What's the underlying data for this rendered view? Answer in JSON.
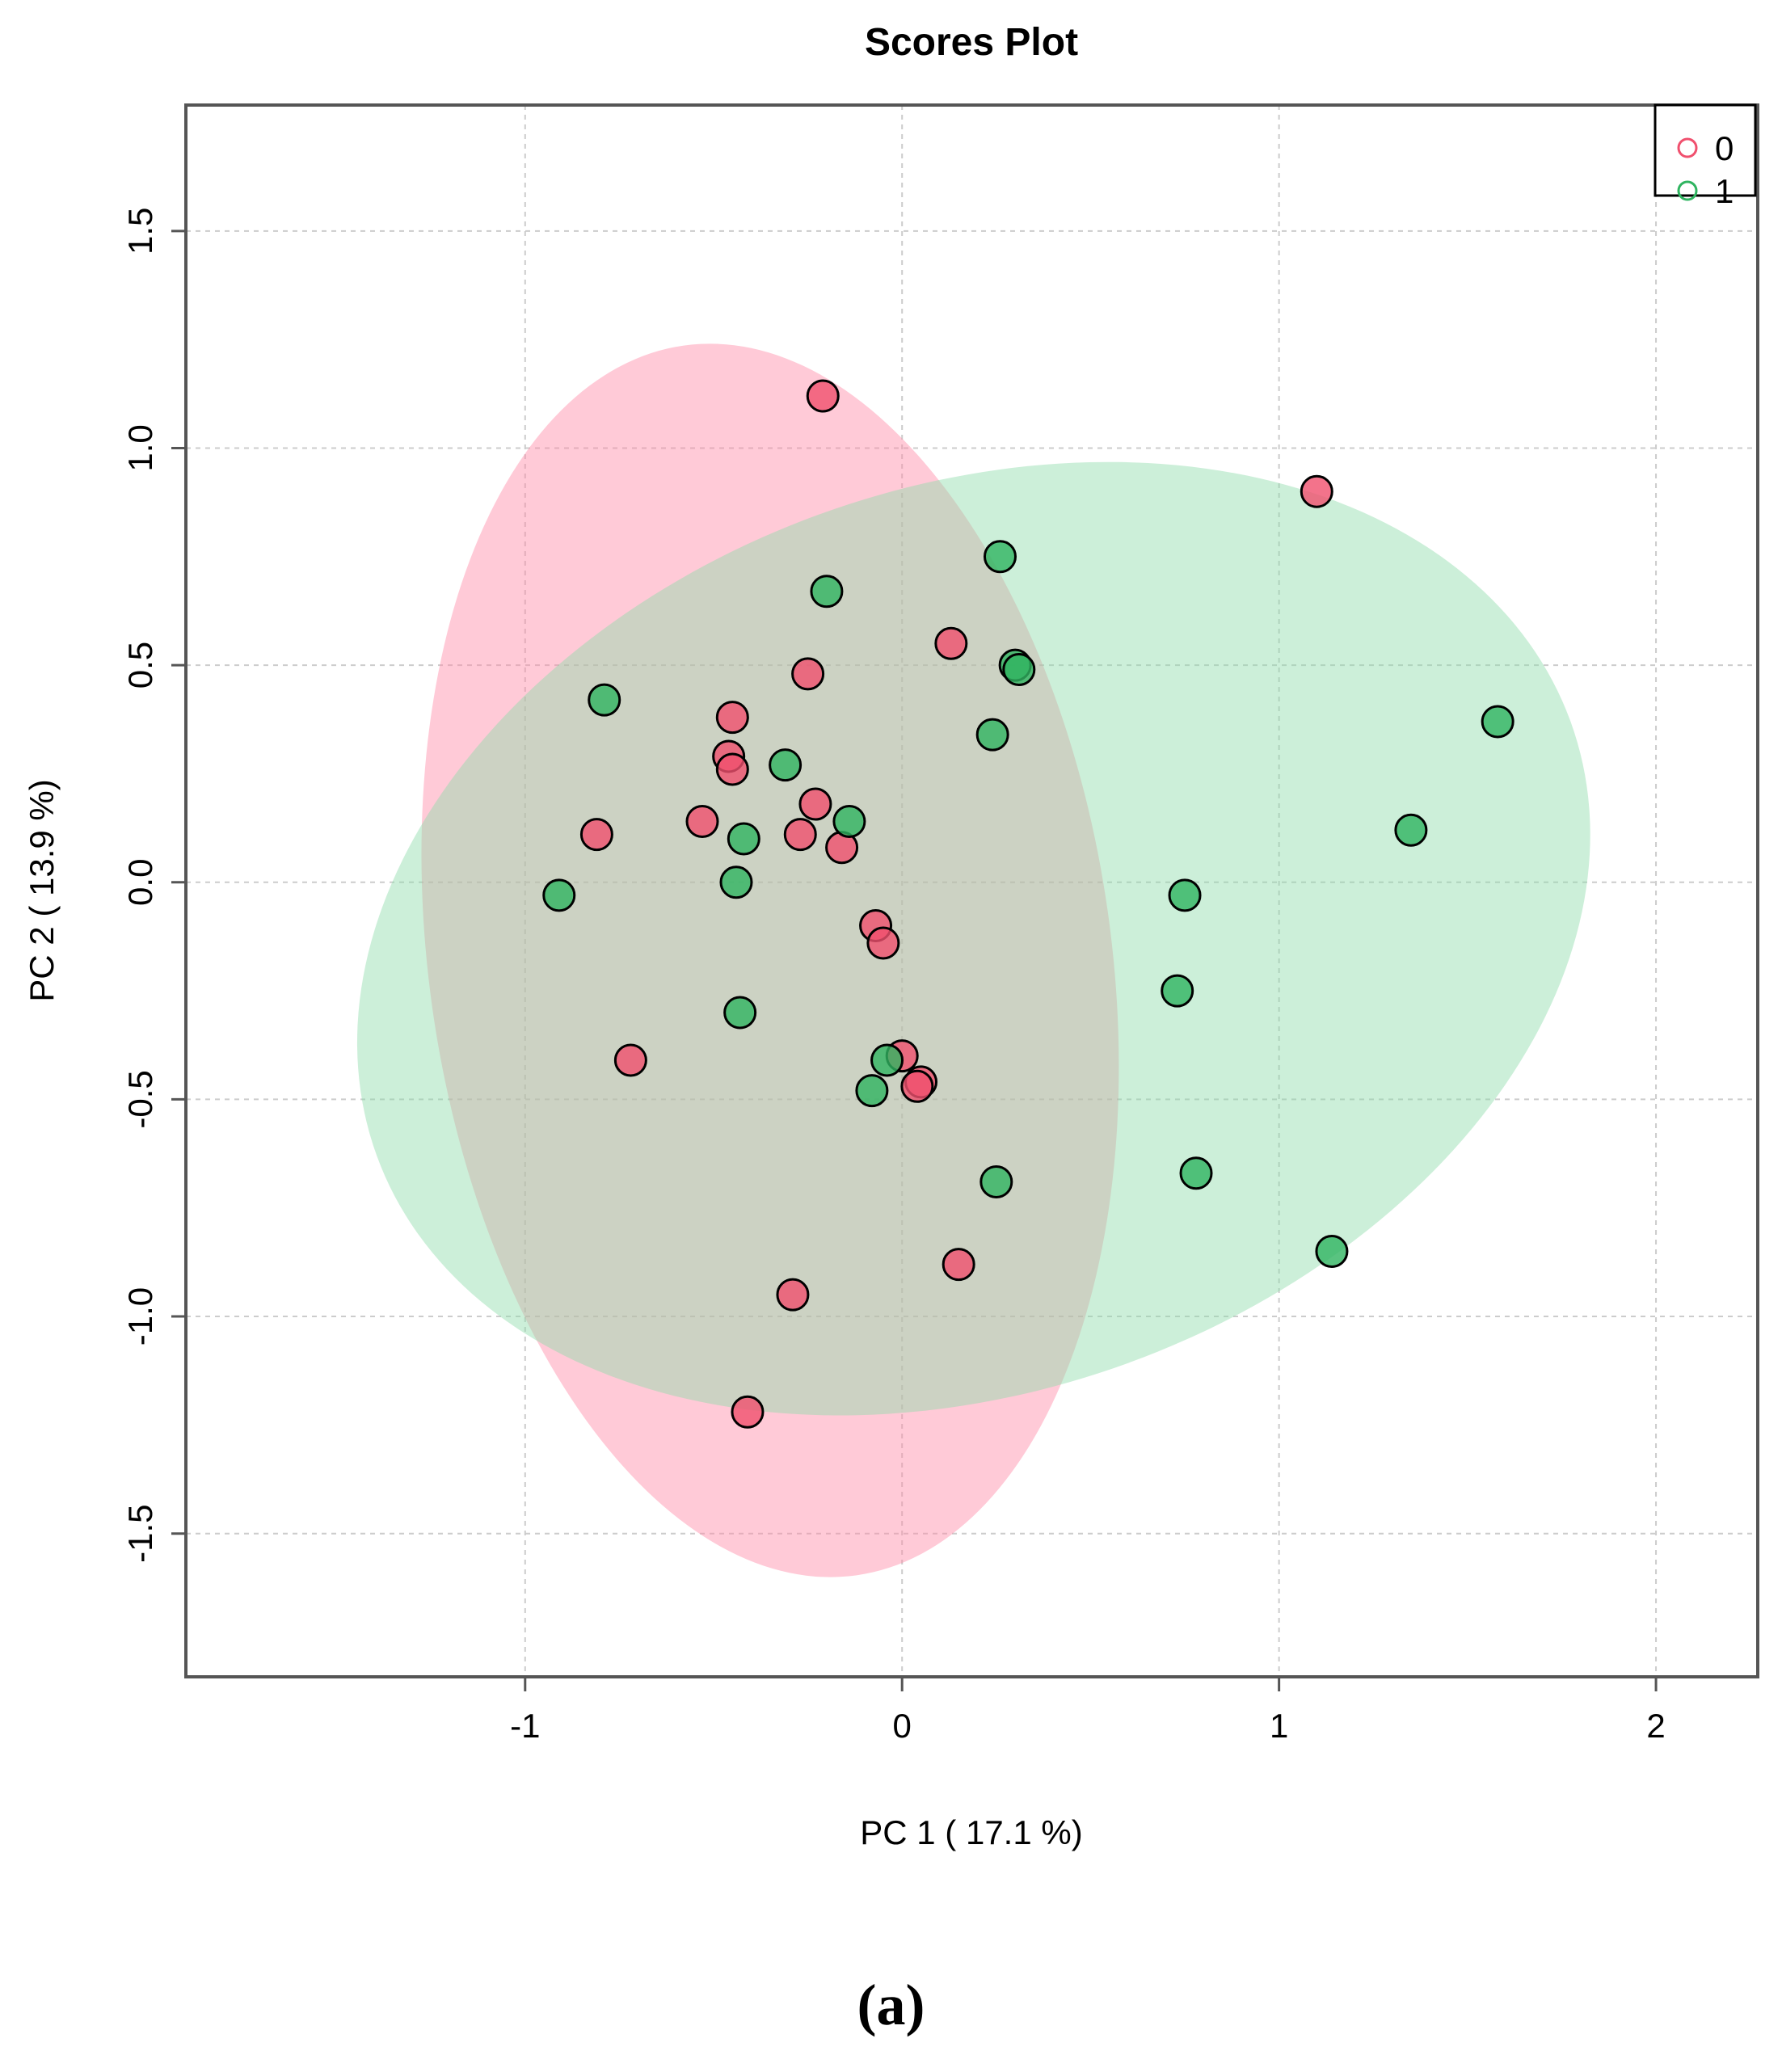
{
  "chart_data": {
    "type": "scatter",
    "title": "Scores Plot",
    "xlabel": "PC 1 ( 17.1 %)",
    "ylabel": "PC 2 ( 13.9 %)",
    "xlim": [
      -1.9,
      2.27
    ],
    "ylim": [
      -1.83,
      1.79
    ],
    "xticks": [
      -1,
      0,
      1,
      2
    ],
    "xtick_labels": [
      "-1",
      "0",
      "1",
      "2"
    ],
    "yticks": [
      -1.5,
      -1.0,
      -0.5,
      0.0,
      0.5,
      1.0,
      1.5
    ],
    "ytick_labels": [
      "-1.5",
      "-1.0",
      "-0.5",
      "0.0",
      "0.5",
      "1.0",
      "1.5"
    ],
    "grid": true,
    "legend_position": "top-right",
    "series": [
      {
        "name": "0",
        "color": "#f0506e",
        "ellipse_color": "#ff8aa6",
        "ellipse": {
          "center": [
            -0.35,
            -0.18
          ],
          "semi_axes": [
            0.905,
            1.43
          ],
          "rotation_deg": -8
        },
        "points": [
          [
            -0.21,
            1.12
          ],
          [
            1.1,
            0.9
          ],
          [
            0.13,
            0.55
          ],
          [
            -0.25,
            0.48
          ],
          [
            -0.45,
            0.38
          ],
          [
            -0.46,
            0.29
          ],
          [
            -0.45,
            0.26
          ],
          [
            -0.23,
            0.18
          ],
          [
            -0.53,
            0.14
          ],
          [
            -0.81,
            0.11
          ],
          [
            -0.27,
            0.11
          ],
          [
            -0.16,
            0.08
          ],
          [
            -0.07,
            -0.1
          ],
          [
            -0.05,
            -0.14
          ],
          [
            0.0,
            -0.4
          ],
          [
            0.05,
            -0.46
          ],
          [
            0.04,
            -0.47
          ],
          [
            -0.72,
            -0.41
          ],
          [
            0.15,
            -0.88
          ],
          [
            -0.29,
            -0.95
          ],
          [
            -0.41,
            -1.22
          ]
        ]
      },
      {
        "name": "1",
        "color": "#2fb460",
        "ellipse_color": "#8fdcaa",
        "ellipse": {
          "center": [
            0.19,
            -0.13
          ],
          "semi_axes": [
            1.685,
            1.04
          ],
          "rotation_deg": -20
        },
        "points": [
          [
            0.26,
            0.75
          ],
          [
            -0.2,
            0.67
          ],
          [
            0.3,
            0.5
          ],
          [
            0.31,
            0.49
          ],
          [
            -0.79,
            0.42
          ],
          [
            1.58,
            0.37
          ],
          [
            0.24,
            0.34
          ],
          [
            -0.31,
            0.27
          ],
          [
            -0.14,
            0.14
          ],
          [
            1.35,
            0.12
          ],
          [
            -0.42,
            0.1
          ],
          [
            -0.44,
            0.0
          ],
          [
            -0.91,
            -0.03
          ],
          [
            0.75,
            -0.03
          ],
          [
            0.73,
            -0.25
          ],
          [
            -0.43,
            -0.3
          ],
          [
            -0.04,
            -0.41
          ],
          [
            -0.08,
            -0.48
          ],
          [
            0.25,
            -0.69
          ],
          [
            0.78,
            -0.67
          ],
          [
            1.14,
            -0.85
          ]
        ]
      }
    ]
  },
  "panel_label": "(a)"
}
